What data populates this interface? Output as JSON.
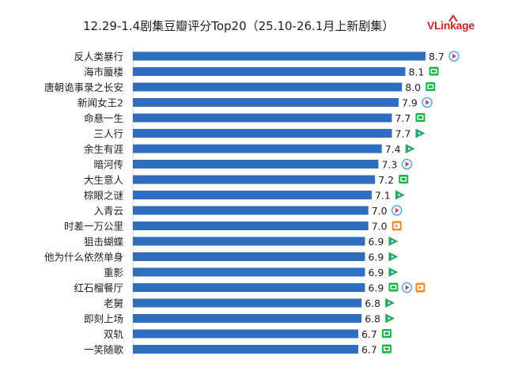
{
  "title": "12.29-1.4剧集豆瓣评分Top20（25.10-26.1月上新剧集）",
  "logo_text": "VLinkage",
  "colors": {
    "bar": "#2f6dbf",
    "tencent_blue": "#2b8de0",
    "tencent_green": "#27b04a",
    "iqiyi_green": "#1ab34a",
    "youku_blue": "#3aa0e8",
    "mango_orange": "#f08a24",
    "logo_red": "#c8272e"
  },
  "chart_data": {
    "type": "bar",
    "orientation": "horizontal",
    "title": "12.29-1.4剧集豆瓣评分Top20（25.10-26.1月上新剧集）",
    "xlabel": "",
    "ylabel": "",
    "xlim": [
      0,
      8.7
    ],
    "grid": false,
    "categories": [
      "反人类暴行",
      "海市蜃楼",
      "唐朝诡事录之长安",
      "新闻女王2",
      "命悬一生",
      "三人行",
      "余生有涯",
      "暗河传",
      "大生意人",
      "棕眼之谜",
      "入青云",
      "时差一万公里",
      "狙击蝴蝶",
      "他为什么依然单身",
      "重影",
      "红石榴餐厅",
      "老舅",
      "即刻上场",
      "双轨",
      "一笑随歌"
    ],
    "values": [
      8.7,
      8.1,
      8.0,
      7.9,
      7.7,
      7.7,
      7.4,
      7.3,
      7.2,
      7.1,
      7.0,
      7.0,
      6.9,
      6.9,
      6.9,
      6.9,
      6.8,
      6.8,
      6.7,
      6.7
    ],
    "value_labels": [
      "8.7",
      "8.1",
      "8.0",
      "7.9",
      "7.7",
      "7.7",
      "7.4",
      "7.3",
      "7.2",
      "7.1",
      "7.0",
      "7.0",
      "6.9",
      "6.9",
      "6.9",
      "6.9",
      "6.8",
      "6.8",
      "6.7",
      "6.7"
    ],
    "platforms": [
      [
        "youku-icon"
      ],
      [
        "iqiyi-icon"
      ],
      [
        "iqiyi-icon"
      ],
      [
        "youku-icon"
      ],
      [
        "iqiyi-icon"
      ],
      [
        "tencent-icon"
      ],
      [
        "tencent-icon"
      ],
      [
        "youku-icon"
      ],
      [
        "iqiyi-icon"
      ],
      [
        "tencent-icon"
      ],
      [
        "youku-icon"
      ],
      [
        "mango-icon"
      ],
      [
        "tencent-icon"
      ],
      [
        "tencent-icon"
      ],
      [
        "tencent-icon"
      ],
      [
        "iqiyi-icon",
        "youku-icon",
        "mango-icon"
      ],
      [
        "tencent-icon"
      ],
      [
        "tencent-icon"
      ],
      [
        "iqiyi-icon"
      ],
      [
        "iqiyi-icon"
      ]
    ]
  }
}
